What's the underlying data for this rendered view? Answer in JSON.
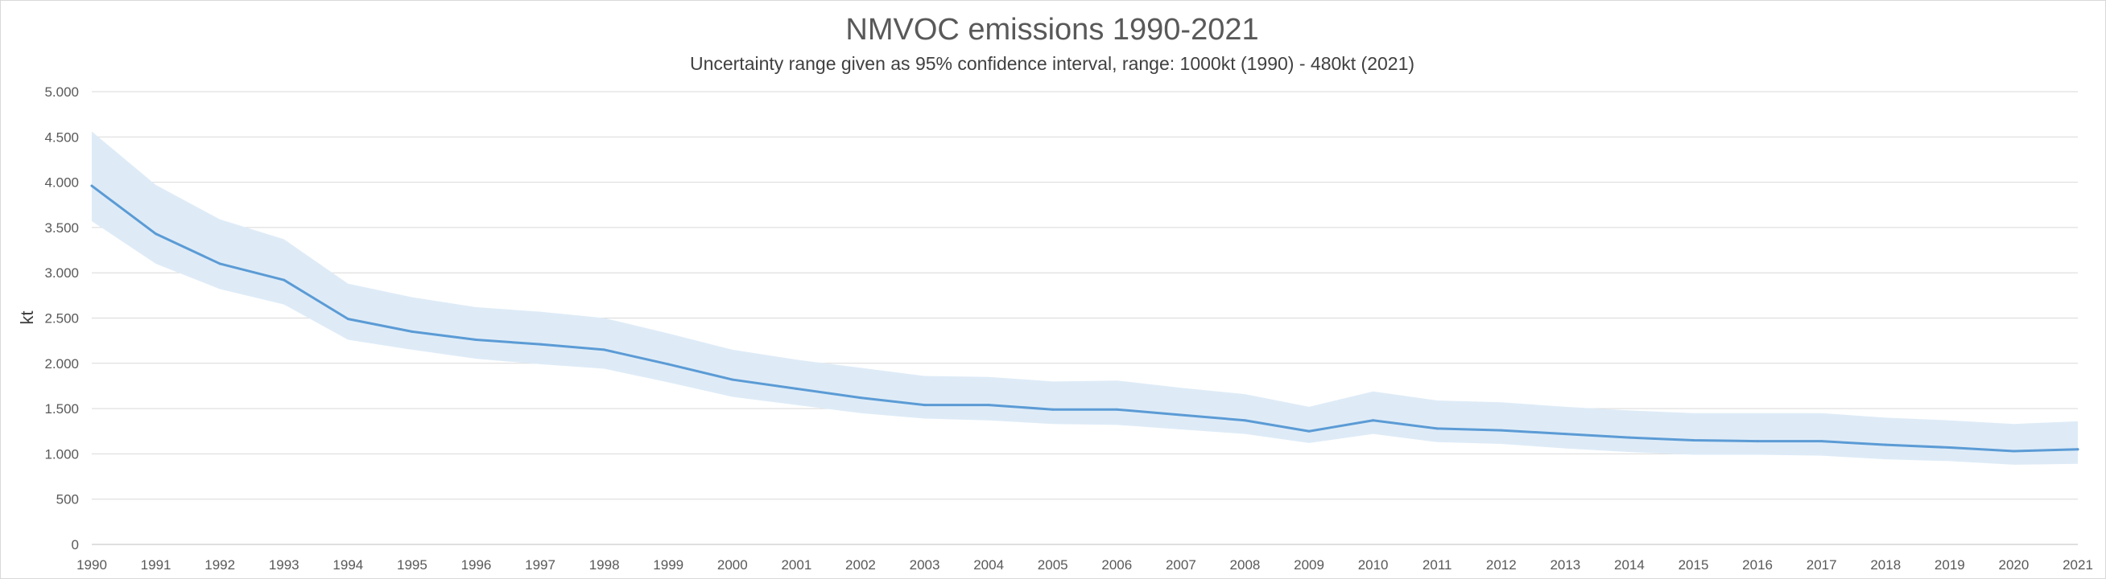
{
  "chart_data": {
    "type": "line",
    "title": "NMVOC emissions 1990-2021",
    "subtitle": "Uncertainty range given as 95% confidence interval, range: 1000kt (1990) - 480kt (2021)",
    "xlabel": "",
    "ylabel": "kt",
    "ylim": [
      0,
      5000
    ],
    "y_ticks": [
      0,
      500,
      1000,
      1500,
      2000,
      2500,
      3000,
      3500,
      4000,
      4500,
      5000
    ],
    "y_tick_labels": [
      "0",
      "500",
      "1.000",
      "1.500",
      "2.000",
      "2.500",
      "3.000",
      "3.500",
      "4.000",
      "4.500",
      "5.000"
    ],
    "grid": true,
    "legend": "none",
    "x": [
      "1990",
      "1991",
      "1992",
      "1993",
      "1994",
      "1995",
      "1996",
      "1997",
      "1998",
      "1999",
      "2000",
      "2001",
      "2002",
      "2003",
      "2004",
      "2005",
      "2006",
      "2007",
      "2008",
      "2009",
      "2010",
      "2011",
      "2012",
      "2013",
      "2014",
      "2015",
      "2016",
      "2017",
      "2018",
      "2019",
      "2020",
      "2021"
    ],
    "series": [
      {
        "name": "",
        "values": [
          3960,
          3430,
          3100,
          2920,
          2490,
          2350,
          2260,
          2210,
          2150,
          1990,
          1820,
          1720,
          1620,
          1540,
          1540,
          1490,
          1490,
          1430,
          1370,
          1250,
          1370,
          1280,
          1260,
          1220,
          1180,
          1150,
          1140,
          1140,
          1100,
          1070,
          1030,
          1050
        ],
        "lower": [
          3570,
          3100,
          2820,
          2650,
          2260,
          2150,
          2050,
          1990,
          1940,
          1790,
          1630,
          1540,
          1450,
          1390,
          1370,
          1330,
          1320,
          1270,
          1220,
          1120,
          1220,
          1130,
          1110,
          1060,
          1020,
          990,
          990,
          980,
          940,
          920,
          880,
          890
        ],
        "upper": [
          4560,
          3970,
          3590,
          3370,
          2880,
          2730,
          2620,
          2570,
          2500,
          2330,
          2150,
          2040,
          1950,
          1860,
          1850,
          1800,
          1810,
          1730,
          1660,
          1520,
          1690,
          1590,
          1570,
          1520,
          1480,
          1450,
          1450,
          1450,
          1400,
          1370,
          1330,
          1360
        ]
      }
    ],
    "colors": {
      "line": "#5b9bd5",
      "band": "#deebf7"
    }
  }
}
